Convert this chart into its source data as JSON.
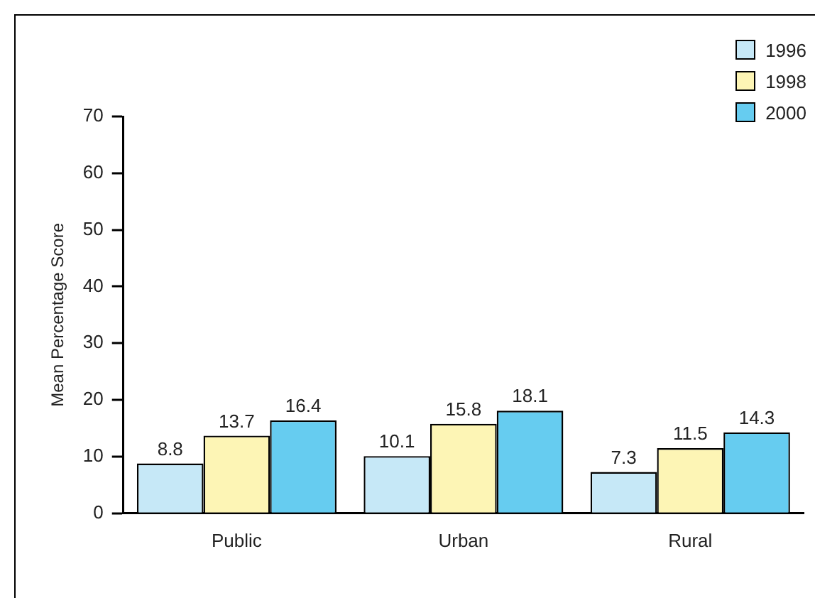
{
  "chart_data": {
    "type": "bar",
    "ylabel": "Mean Percentage Score",
    "categories": [
      "Public",
      "Urban",
      "Rural"
    ],
    "series": [
      {
        "name": "1996",
        "color": "#c6e8f7",
        "values": [
          8.8,
          10.1,
          7.3
        ]
      },
      {
        "name": "1998",
        "color": "#fdf5b5",
        "values": [
          13.7,
          15.8,
          11.5
        ]
      },
      {
        "name": "2000",
        "color": "#66ccf0",
        "values": [
          16.4,
          18.1,
          14.3
        ]
      }
    ],
    "ylim": [
      0,
      70
    ],
    "yticks": [
      0,
      10,
      20,
      30,
      40,
      50,
      60,
      70
    ],
    "grid": false,
    "legend": "top right",
    "data_labels": true
  }
}
